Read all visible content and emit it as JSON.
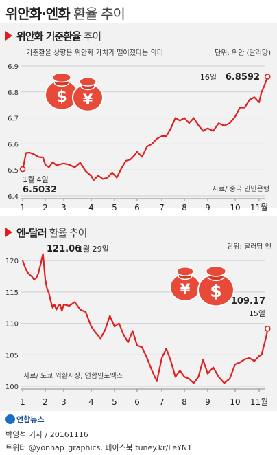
{
  "title": {
    "main": "위안화·엔화",
    "light": " 환율 추이"
  },
  "chart_data": [
    {
      "type": "line",
      "title_main": "위안화 기준환율",
      "title_light": " 추이",
      "subtitle": "기준환율 상향은 위안화 가치가 떨어졌다는 의미",
      "unit": "단위: 위안 (달러당)",
      "source": "자료/ 중국 인민은행",
      "xticks": [
        "1",
        "2",
        "3",
        "4",
        "5",
        "6",
        "7",
        "8",
        "9",
        "10",
        "11월"
      ],
      "yticks": [
        "6.9",
        "6.8",
        "6.7",
        "6.6",
        "6.5",
        "6.4"
      ],
      "ylim": [
        6.4,
        6.9
      ],
      "xlim": [
        1,
        11.4
      ],
      "annotations": {
        "start_date": "1월 4일",
        "start_value": "6.5032",
        "end_date": "16일",
        "end_value": "6.8592"
      },
      "series": [
        {
          "x": [
            1.0,
            1.05,
            1.15,
            1.3,
            1.5,
            1.7,
            1.9,
            2.0,
            2.2,
            2.4,
            2.6,
            2.8,
            3.0,
            3.2,
            3.4,
            3.6,
            3.8,
            4.0,
            4.1,
            4.3,
            4.5,
            4.7,
            4.9,
            5.1,
            5.3,
            5.5,
            5.7,
            5.9,
            6.0,
            6.2,
            6.4,
            6.6,
            6.8,
            7.0,
            7.2,
            7.4,
            7.6,
            7.8,
            8.0,
            8.2,
            8.4,
            8.6,
            8.8,
            9.0,
            9.2,
            9.4,
            9.6,
            9.8,
            10.0,
            10.2,
            10.4,
            10.6,
            10.8,
            11.0,
            11.1,
            11.2,
            11.3,
            11.35
          ],
          "values": [
            6.503,
            6.52,
            6.565,
            6.567,
            6.56,
            6.55,
            6.548,
            6.52,
            6.51,
            6.53,
            6.518,
            6.522,
            6.525,
            6.52,
            6.51,
            6.528,
            6.495,
            6.477,
            6.46,
            6.478,
            6.465,
            6.47,
            6.49,
            6.47,
            6.505,
            6.535,
            6.54,
            6.558,
            6.57,
            6.55,
            6.59,
            6.6,
            6.62,
            6.63,
            6.63,
            6.66,
            6.7,
            6.69,
            6.7,
            6.68,
            6.7,
            6.672,
            6.65,
            6.66,
            6.65,
            6.68,
            6.67,
            6.68,
            6.705,
            6.74,
            6.74,
            6.77,
            6.78,
            6.76,
            6.8,
            6.82,
            6.845,
            6.8592
          ]
        }
      ]
    },
    {
      "type": "line",
      "title_main": "엔-달러",
      "title_light": " 환율 추이",
      "unit": "단위: 달러당 엔",
      "source": "자료/ 도쿄 외환시장, 연합인포맥스",
      "xticks": [
        "1",
        "2",
        "3",
        "4",
        "5",
        "6",
        "7",
        "8",
        "9",
        "10",
        "11월"
      ],
      "yticks": [
        "120",
        "115",
        "110",
        "105",
        "100"
      ],
      "ylim": [
        100,
        121
      ],
      "xlim": [
        1,
        11.4
      ],
      "annotations": {
        "peak_value": "121.06",
        "peak_date": "1월 29일",
        "end_value": "109.17",
        "end_date": "15일"
      },
      "series": [
        {
          "x": [
            1.0,
            1.1,
            1.2,
            1.3,
            1.4,
            1.5,
            1.6,
            1.7,
            1.8,
            1.9,
            2.0,
            2.1,
            2.2,
            2.3,
            2.4,
            2.5,
            2.6,
            2.7,
            2.8,
            2.9,
            3.0,
            3.2,
            3.4,
            3.6,
            3.8,
            4.0,
            4.2,
            4.4,
            4.6,
            4.8,
            5.0,
            5.2,
            5.4,
            5.6,
            5.8,
            6.0,
            6.2,
            6.4,
            6.6,
            6.8,
            7.0,
            7.2,
            7.4,
            7.6,
            7.8,
            8.0,
            8.2,
            8.4,
            8.6,
            8.8,
            9.0,
            9.2,
            9.4,
            9.6,
            9.8,
            10.0,
            10.2,
            10.4,
            10.6,
            10.8,
            11.0,
            11.1,
            11.2,
            11.3,
            11.35
          ],
          "values": [
            120.0,
            119.0,
            118.2,
            117.8,
            117.5,
            117.0,
            117.2,
            118.0,
            119.5,
            121.06,
            117.0,
            115.5,
            114.8,
            113.5,
            112.5,
            113.0,
            112.2,
            112.8,
            113.0,
            112.0,
            113.0,
            112.8,
            113.4,
            112.2,
            111.8,
            109.5,
            108.5,
            107.6,
            109.0,
            111.2,
            109.5,
            110.0,
            108.2,
            107.0,
            108.8,
            106.5,
            106.2,
            104.5,
            102.5,
            100.8,
            104.5,
            106.0,
            104.0,
            101.5,
            102.5,
            101.5,
            101.2,
            100.5,
            101.5,
            104.2,
            102.0,
            103.0,
            101.5,
            100.5,
            101.2,
            103.5,
            103.8,
            104.3,
            104.5,
            104.0,
            104.8,
            105.0,
            106.5,
            108.0,
            109.17
          ]
        }
      ]
    }
  ],
  "footer": {
    "reporter": "박영석 기자 / 20161116",
    "social": "트위터 @yonhap_graphics, 페이스북 tuney.kr/LeYN1",
    "logo": "연합뉴스"
  }
}
